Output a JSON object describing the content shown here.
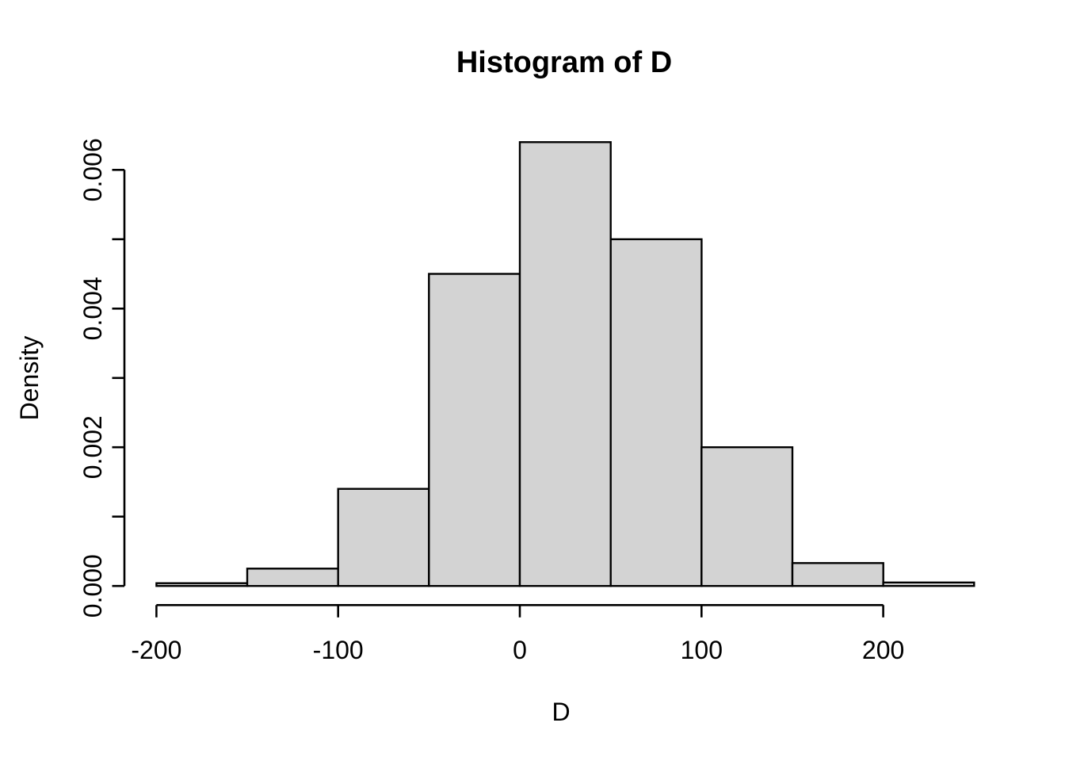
{
  "page": {
    "background_color": "#FFFFFF"
  },
  "chart_data": {
    "type": "bar",
    "subtype": "histogram",
    "title": "Histogram of D",
    "xlabel": "D",
    "ylabel": "Density",
    "variable": "D",
    "bins": [
      {
        "from": -200,
        "to": -150,
        "density": 4e-05
      },
      {
        "from": -150,
        "to": -100,
        "density": 0.00025
      },
      {
        "from": -100,
        "to": -50,
        "density": 0.0014
      },
      {
        "from": -50,
        "to": 0,
        "density": 0.0045
      },
      {
        "from": 0,
        "to": 50,
        "density": 0.0064
      },
      {
        "from": 50,
        "to": 100,
        "density": 0.005
      },
      {
        "from": 100,
        "to": 150,
        "density": 0.002
      },
      {
        "from": 150,
        "to": 200,
        "density": 0.00033
      },
      {
        "from": 200,
        "to": 250,
        "density": 5e-05
      }
    ],
    "x_axis": {
      "range": [
        -200,
        250
      ],
      "axis_line_range": [
        -200,
        200
      ],
      "tick_values": [
        -200,
        -100,
        0,
        100,
        200
      ],
      "tick_labels": [
        "-200",
        "-100",
        "0",
        "100",
        "200"
      ]
    },
    "y_axis": {
      "range": [
        0,
        0.0064
      ],
      "axis_line_range": [
        0,
        0.006
      ],
      "tick_step": 0.001,
      "max_tick": 0.006,
      "labeled_tick_values": [
        0,
        0.002,
        0.004,
        0.006
      ],
      "labeled_tick_labels": [
        "0.000",
        "0.002",
        "0.004",
        "0.006"
      ],
      "decimals": 3
    },
    "layout_hints": {
      "grid": false,
      "legend": false,
      "bars_touch": true
    },
    "style": {
      "bar_fill": "#D3D3D3",
      "bar_border": "#000000",
      "axis_color": "#000000",
      "text_color": "#000000"
    }
  }
}
